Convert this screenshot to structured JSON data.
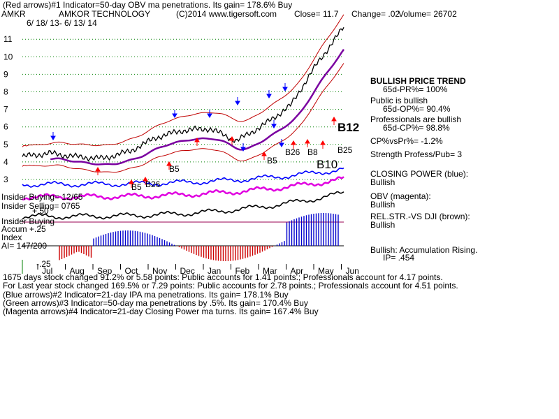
{
  "header": {
    "line1": "(Red arrows)#1 Indicator=50-day OBV ma penetrations. Its gain= 178.6% Buy",
    "ticker": "AMKR",
    "company": "AMKOR TECHNOLOGY",
    "site": "(C)2014 www.tigersoft.com",
    "close": "Close=  11.7",
    "change": "Change= .02",
    "volume": "Volume= 26702",
    "dates": "6/ 18/ 13- 6/ 13/ 14"
  },
  "left_labels": {
    "insider_buying": "Insider Buying= 12/65",
    "insider_selling": "Insider Selling= 0765",
    "accum1": "Insider Buying",
    "accum2": "Accum  +.25",
    "accum3": "Index",
    "ai": "AI= 147/200",
    "plus50": "+.50",
    "minus25": "-.25"
  },
  "signals": {
    "b12": "B12",
    "b25": "B25",
    "b10": "B10",
    "b26a": "B26",
    "b8": "B8",
    "b5a": "B5",
    "b5b": "B5",
    "b5c": "B5",
    "b26b": "B26"
  },
  "right_panel": {
    "trend_title": "BULLISH PRICE TREND",
    "pr": "65d-PR%= 100%",
    "public": "Public is bullish",
    "op": "65d-OP%= 90.4%",
    "prof": "Professionals are bullish",
    "cp": "65d-CP%= 98.8%",
    "cpvs": "CP%vsPr%= -1.2%",
    "strength": "Strength Profess/Pub= 3",
    "closing_power": "CLOSING POWER (blue):",
    "cp_val": "Bullish",
    "obv": "OBV (magenta):",
    "obv_val": "Bullish",
    "rel": "REL.STR.-VS DJI (brown):",
    "rel_val": "Bullish",
    "accum": "Bullish: Accumulation Rising.",
    "ip": "IP=  .454"
  },
  "footer": {
    "line1": "1675 days stock changed  91.2% or  5.58 points:  Public accounts for  1.41 points.;  Professionals account for  4.17 points.",
    "line2": "For Last year stock changed  169.5% or  7.29 points:  Public accounts for  2.78 points.;  Professionals account for  4.51 points.",
    "line3": "(Blue arrows)#2 Indicator=21-day IPA ma penetrations. Its gain= 178.1% Buy",
    "line4": "(Green arrows)#3 Indicator=50-day ma penetrations by .5%. Its gain= 170.4% Buy",
    "line5": "(Magenta arrows)#4 Indicator=21-day Closing Power ma turns. Its gain= 167.4% Buy"
  },
  "colors": {
    "price": "#000000",
    "band": "#c00000",
    "ma": "#7a00a0",
    "closing_power": "#0000ff",
    "obv": "#e000e0",
    "relstr": "#000000",
    "accum_pos": "#0000cc",
    "accum_neg": "#cc0000",
    "grid": "#008000"
  },
  "chart_data": {
    "type": "line",
    "title": "AMKR  AMKOR TECHNOLOGY",
    "xlabel": "",
    "ylabel": "",
    "x_ticks": [
      "Jul",
      "Aug",
      "Sep",
      "Oct",
      "Nov",
      "Dec",
      "Jan",
      "Feb",
      "Mar",
      "Apr",
      "May",
      "Jun"
    ],
    "y_ticks": [
      3,
      4,
      5,
      6,
      7,
      8,
      9,
      10,
      11
    ],
    "ylim": [
      2.5,
      12
    ],
    "series": [
      {
        "name": "",
        "x": [
          "Jun",
          "Jul",
          "Aug",
          "Sep",
          "Oct",
          "Nov",
          "Dec",
          "Jan",
          "Feb",
          "Mar",
          "Apr",
          "May",
          "Jun"
        ],
        "values": [
          4.3,
          4.5,
          4.3,
          4.2,
          4.6,
          5.4,
          5.8,
          5.9,
          5.2,
          6.1,
          7.2,
          9.6,
          11.7
        ]
      }
    ]
  }
}
